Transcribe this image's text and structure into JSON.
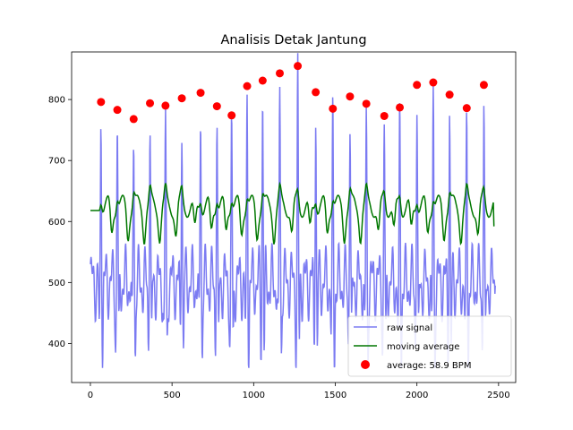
{
  "chart_data": {
    "type": "line",
    "title": "Analisis Detak Jantung",
    "xlabel": "",
    "ylabel": "",
    "xlim": [
      -115,
      2605
    ],
    "ylim": [
      336,
      878
    ],
    "xticks": [
      0,
      500,
      1000,
      1500,
      2000,
      2500
    ],
    "yticks": [
      400,
      500,
      600,
      700,
      800
    ],
    "grid": false,
    "legend_position": "lower right",
    "colors": {
      "raw": "#7b7bf2",
      "moving_average": "#007700",
      "peaks": "#ff0000"
    },
    "series": [
      {
        "name": "raw signal",
        "kind": "line"
      },
      {
        "name": "moving average",
        "kind": "line"
      },
      {
        "name": "average: 58.9 BPM",
        "kind": "scatter"
      }
    ],
    "peaks": {
      "x": [
        65,
        165,
        265,
        365,
        460,
        560,
        675,
        775,
        865,
        960,
        1055,
        1160,
        1270,
        1380,
        1485,
        1590,
        1690,
        1800,
        1895,
        2000,
        2100,
        2200,
        2305,
        2410
      ],
      "y": [
        796,
        783,
        768,
        794,
        790,
        802,
        811,
        789,
        774,
        822,
        831,
        843,
        855,
        812,
        785,
        805,
        793,
        773,
        787,
        824,
        828,
        808,
        786,
        824
      ]
    },
    "raw_signal_start": [
      0,
      530
    ],
    "raw_signal_end": [
      2480,
      495
    ],
    "raw_signal_min": 360,
    "moving_average_start": [
      0,
      618
    ],
    "moving_average_end": [
      2475,
      592
    ]
  }
}
